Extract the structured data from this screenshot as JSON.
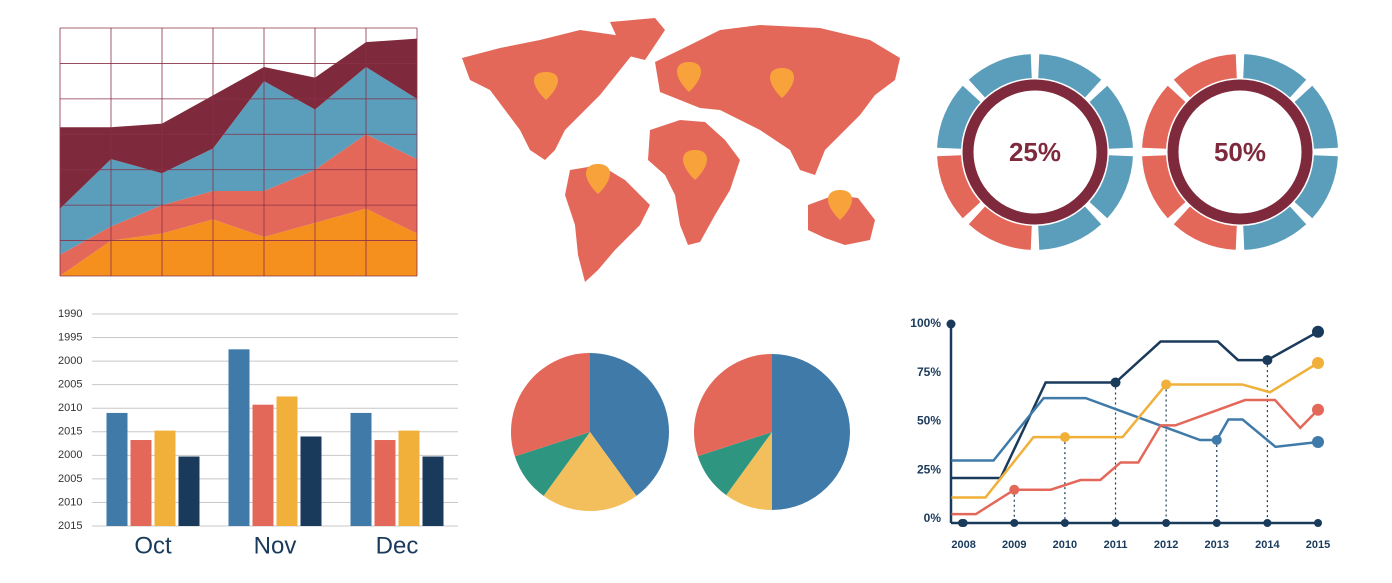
{
  "chart_data": [
    {
      "type": "area",
      "x": [
        0,
        1,
        2,
        3,
        4,
        5,
        6,
        7
      ],
      "xlim": [
        0,
        7
      ],
      "ylim": [
        0,
        7
      ],
      "xticks": [
        0,
        1,
        2,
        3,
        4,
        5,
        6,
        7
      ],
      "yticks": [
        0,
        1,
        2,
        3,
        4,
        5,
        6,
        7
      ],
      "grid": true,
      "series": [
        {
          "color": "#f5901e",
          "values": [
            0,
            1,
            1.2,
            1.6,
            1.1,
            1.5,
            1.9,
            1.2
          ]
        },
        {
          "color": "#e4685a",
          "values": [
            0.6,
            0.4,
            0.8,
            0.8,
            1.3,
            1.5,
            2.1,
            2.1
          ]
        },
        {
          "color": "#5b9ebc",
          "values": [
            1.3,
            1.9,
            0.9,
            1.2,
            3.1,
            1.7,
            1.9,
            1.7
          ]
        },
        {
          "color": "#7f2a3c",
          "values": [
            2.3,
            0.9,
            1.4,
            1.5,
            0.4,
            0.9,
            0.7,
            1.7
          ]
        }
      ]
    },
    {
      "type": "donut",
      "values": [
        25
      ],
      "value_labels": [
        "25%"
      ],
      "colors": [
        "#e4685a",
        "#5b9ebc",
        "#7f2a3c"
      ]
    },
    {
      "type": "donut",
      "values": [
        50
      ],
      "value_labels": [
        "50%"
      ],
      "colors": [
        "#e4685a",
        "#5b9ebc",
        "#7f2a3c"
      ]
    },
    {
      "type": "bar",
      "categories": [
        "Oct",
        "Nov",
        "Dec"
      ],
      "ylim": [
        0,
        9
      ],
      "grid": true,
      "yticks": [
        {
          "value": 9,
          "label": "1990"
        },
        {
          "value": 8,
          "label": "1995"
        },
        {
          "value": 7,
          "label": "2000"
        },
        {
          "value": 6,
          "label": "2005"
        },
        {
          "value": 5,
          "label": "2010"
        },
        {
          "value": 4,
          "label": "2015"
        },
        {
          "value": 3,
          "label": "2000"
        },
        {
          "value": 2,
          "label": "2005"
        },
        {
          "value": 1,
          "label": "2010"
        },
        {
          "value": 0,
          "label": "2015"
        }
      ],
      "series": [
        {
          "color": "#3f7aa8",
          "values": [
            4.8,
            7.5,
            4.8
          ]
        },
        {
          "color": "#e4685a",
          "values": [
            3.65,
            5.15,
            3.65
          ]
        },
        {
          "color": "#f0b03a",
          "values": [
            4.05,
            5.5,
            4.05
          ]
        },
        {
          "color": "#1a3a5c",
          "values": [
            2.95,
            3.8,
            2.95
          ]
        }
      ]
    },
    {
      "type": "pie",
      "values": [
        40,
        20,
        10,
        30
      ],
      "colors": [
        "#3f7aa8",
        "#f3bf5c",
        "#2e9680",
        "#e4685a"
      ]
    },
    {
      "type": "pie",
      "values": [
        50,
        10,
        10,
        30
      ],
      "colors": [
        "#3f7aa8",
        "#f3bf5c",
        "#2e9680",
        "#e4685a"
      ]
    },
    {
      "type": "line",
      "xlim": [
        2007.75,
        2015
      ],
      "xticks": [
        2008,
        2009,
        2010,
        2011,
        2012,
        2013,
        2014,
        2015
      ],
      "ylim": [
        0,
        100
      ],
      "yticks": [
        {
          "value": 0,
          "label": "0%"
        },
        {
          "value": 25,
          "label": "25%"
        },
        {
          "value": 50,
          "label": "50%"
        },
        {
          "value": 75,
          "label": "75%"
        },
        {
          "value": 100,
          "label": "100%"
        }
      ],
      "series": [
        {
          "color": "#1a3a5c",
          "x": [
            2007.76,
            2008.73,
            2009.62,
            2011,
            2011.89,
            2013.02,
            2013.42,
            2014,
            2015
          ],
          "values": [
            21,
            21,
            70,
            70,
            91,
            91,
            81.5,
            81.5,
            96
          ]
        },
        {
          "color": "#3f7aa8",
          "x": [
            2007.76,
            2008.59,
            2009.58,
            2010.41,
            2012.67,
            2013,
            2013.23,
            2013.51,
            2014.16,
            2015
          ],
          "values": [
            30,
            30,
            62,
            62,
            40.5,
            40.5,
            51,
            51,
            37,
            39.5
          ]
        },
        {
          "color": "#f0b03a",
          "x": [
            2007.76,
            2008.43,
            2009.38,
            2010,
            2011.14,
            2012,
            2013.5,
            2014.05,
            2015
          ],
          "values": [
            11,
            11,
            42,
            42,
            42,
            69,
            69,
            65,
            80
          ]
        },
        {
          "color": "#e4685a",
          "x": [
            2007.76,
            2008.24,
            2009,
            2009.72,
            2010.31,
            2010.7,
            2011.1,
            2011.45,
            2011.89,
            2012.18,
            2013.56,
            2014.15,
            2014.65,
            2015
          ],
          "values": [
            2.5,
            2.5,
            15,
            15,
            20,
            20,
            29,
            29,
            48,
            48,
            61,
            61,
            46.7,
            56
          ]
        }
      ]
    }
  ]
}
